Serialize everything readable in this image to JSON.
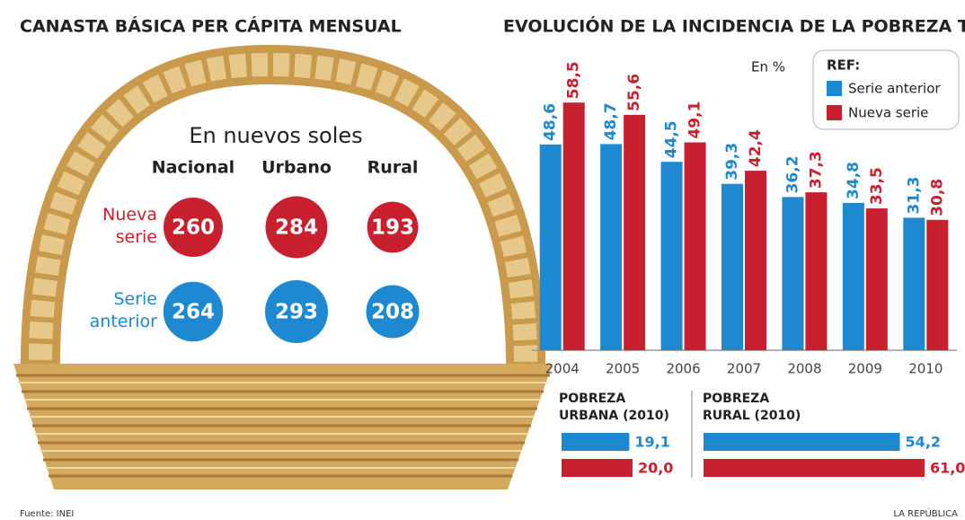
{
  "chart_data": [
    {
      "type": "bubble",
      "title": "CANASTA BÁSICA PER CÁPITA MENSUAL",
      "subtitle": "En nuevos soles",
      "categories": [
        "Nacional",
        "Urbano",
        "Rural"
      ],
      "series": [
        {
          "name": "Nueva\nserie",
          "color": "#c8202f",
          "values": [
            260,
            284,
            193
          ]
        },
        {
          "name": "Serie\nanterior",
          "color": "#1e88d0",
          "values": [
            264,
            293,
            208
          ]
        }
      ]
    },
    {
      "type": "bar",
      "title": "EVOLUCIÓN DE LA INCIDENCIA DE LA POBREZA TOTAL",
      "unit": "En %",
      "legend_title": "REF:",
      "legend": "top-right",
      "categories": [
        "2004",
        "2005",
        "2006",
        "2007",
        "2008",
        "2009",
        "2010"
      ],
      "series": [
        {
          "name": "Serie anterior",
          "color": "#1e88d0",
          "values": [
            48.6,
            48.7,
            44.5,
            39.3,
            36.2,
            34.8,
            31.3
          ],
          "value_labels": [
            "48,6",
            "48,7",
            "44,5",
            "39,3",
            "36,2",
            "34,8",
            "31,3"
          ]
        },
        {
          "name": "Nueva serie",
          "color": "#c8202f",
          "values": [
            58.5,
            55.6,
            49.1,
            42.4,
            37.3,
            33.5,
            30.8
          ],
          "value_labels": [
            "58,5",
            "55,6",
            "49,1",
            "42,4",
            "37,3",
            "33,5",
            "30,8"
          ]
        }
      ],
      "ylim": [
        0,
        70
      ]
    },
    {
      "type": "barh",
      "title": "POBREZA\nURBANA (2010)",
      "values": [
        19.1,
        20.0
      ],
      "value_labels": [
        "19,1",
        "20,0"
      ],
      "colors": [
        "#1e88d0",
        "#c8202f"
      ],
      "xlim": [
        0,
        38
      ]
    },
    {
      "type": "barh",
      "title": "POBREZA\nRURAL (2010)",
      "values": [
        54.2,
        61.0
      ],
      "value_labels": [
        "54,2",
        "61,0"
      ],
      "colors": [
        "#1e88d0",
        "#c8202f"
      ],
      "xlim": [
        0,
        62
      ]
    }
  ],
  "footer": {
    "source": "Fuente: INEI",
    "credit": "LA REPÚBLICA"
  }
}
